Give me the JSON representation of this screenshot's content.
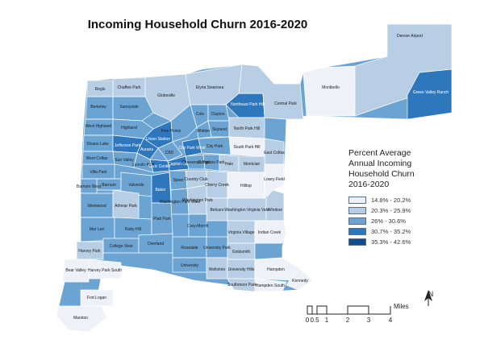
{
  "title": "Incoming Household Churn 2016-2020",
  "legend": {
    "title_lines": [
      "Percent Average",
      "Annual Incoming",
      "Household Churn",
      "2016-2020"
    ],
    "classes": [
      {
        "label": "14.8% - 20.2%",
        "color": "#eef2f8"
      },
      {
        "label": "20.3% - 25.9%",
        "color": "#b7cee4"
      },
      {
        "label": "26% - 30.6%",
        "color": "#6ba4d3"
      },
      {
        "label": "30.7% - 35.2%",
        "color": "#2f77bd"
      },
      {
        "label": "35.3% - 42.6%",
        "color": "#0e4d96"
      }
    ]
  },
  "scale_bar": {
    "ticks": [
      "0",
      "0.5",
      "1",
      "2",
      "3",
      "4"
    ],
    "unit": "Miles"
  },
  "north_arrow": {
    "letter": "N"
  },
  "neighborhoods": [
    {
      "name": "Regis",
      "class": 2
    },
    {
      "name": "Chaffee Park",
      "class": 2
    },
    {
      "name": "Berkeley",
      "class": 3
    },
    {
      "name": "Sunnyside",
      "class": 3
    },
    {
      "name": "Globeville",
      "class": 2
    },
    {
      "name": "Elyria Swansea",
      "class": 2
    },
    {
      "name": "Northeast Park Hill",
      "class": 4
    },
    {
      "name": "Central Park",
      "class": 2
    },
    {
      "name": "Montbello",
      "class": 1
    },
    {
      "name": "Green Valley Ranch",
      "class": 4
    },
    {
      "name": "Denver Airport",
      "class": 2
    },
    {
      "name": "West Highland",
      "class": 3
    },
    {
      "name": "Highland",
      "class": 3
    },
    {
      "name": "Five Points",
      "class": 3
    },
    {
      "name": "Cole",
      "class": 3
    },
    {
      "name": "Clayton",
      "class": 3
    },
    {
      "name": "Whittier",
      "class": 3
    },
    {
      "name": "Skyland",
      "class": 3
    },
    {
      "name": "North Park Hill",
      "class": 2
    },
    {
      "name": "Sloans Lake",
      "class": 3
    },
    {
      "name": "Union Station",
      "class": 4
    },
    {
      "name": "Auraria",
      "class": 4
    },
    {
      "name": "CBD",
      "class": 3
    },
    {
      "name": "City Park West",
      "class": 4
    },
    {
      "name": "City Park",
      "class": 3
    },
    {
      "name": "South Park Hill",
      "class": 1
    },
    {
      "name": "East Colfax",
      "class": 2
    },
    {
      "name": "West Colfax",
      "class": 3
    },
    {
      "name": "Jefferson Park",
      "class": 4
    },
    {
      "name": "Sun Valley",
      "class": 3
    },
    {
      "name": "Lincoln Park",
      "class": 3
    },
    {
      "name": "Civic Center",
      "class": 4
    },
    {
      "name": "Capitol Hill",
      "class": 4
    },
    {
      "name": "Cheesman Park",
      "class": 3
    },
    {
      "name": "Congress Park",
      "class": 3
    },
    {
      "name": "Hale",
      "class": 2
    },
    {
      "name": "Montclair",
      "class": 2
    },
    {
      "name": "Villa Park",
      "class": 3
    },
    {
      "name": "Barnum",
      "class": 3
    },
    {
      "name": "Barnum West",
      "class": 3
    },
    {
      "name": "Valverde",
      "class": 3
    },
    {
      "name": "Baker",
      "class": 4
    },
    {
      "name": "Speer",
      "class": 3
    },
    {
      "name": "Country Club",
      "class": 2
    },
    {
      "name": "Cherry Creek",
      "class": 2
    },
    {
      "name": "Hilltop",
      "class": 1
    },
    {
      "name": "Lowry Field",
      "class": 1
    },
    {
      "name": "Westwood",
      "class": 3
    },
    {
      "name": "Athmar Park",
      "class": 2
    },
    {
      "name": "Washington Park West",
      "class": 3
    },
    {
      "name": "Washington Park",
      "class": 2
    },
    {
      "name": "Belcaro",
      "class": 2
    },
    {
      "name": "Washington Virginia Vale",
      "class": 2
    },
    {
      "name": "Windsor",
      "class": 2
    },
    {
      "name": "Mar Lee",
      "class": 3
    },
    {
      "name": "Ruby Hill",
      "class": 3
    },
    {
      "name": "Platt Park",
      "class": 3
    },
    {
      "name": "Cory-Merrill",
      "class": 3
    },
    {
      "name": "Virginia Village",
      "class": 2
    },
    {
      "name": "Indian Creek",
      "class": 1
    },
    {
      "name": "College View",
      "class": 3
    },
    {
      "name": "Overland",
      "class": 3
    },
    {
      "name": "Rosedale",
      "class": 3
    },
    {
      "name": "University Park",
      "class": 3
    },
    {
      "name": "Goldsmith",
      "class": 2
    },
    {
      "name": "Harvey Park",
      "class": 2
    },
    {
      "name": "University",
      "class": 3
    },
    {
      "name": "Wellshire",
      "class": 2
    },
    {
      "name": "University Hills",
      "class": 2
    },
    {
      "name": "Hampden",
      "class": 1
    },
    {
      "name": "Kennedy",
      "class": 1
    },
    {
      "name": "Bear Valley",
      "class": 1
    },
    {
      "name": "Harvey Park South",
      "class": 1
    },
    {
      "name": "Southmoor Park",
      "class": 2
    },
    {
      "name": "Hampden South",
      "class": 1
    },
    {
      "name": "Fort Logan",
      "class": 1
    },
    {
      "name": "Marston",
      "class": 1
    }
  ]
}
